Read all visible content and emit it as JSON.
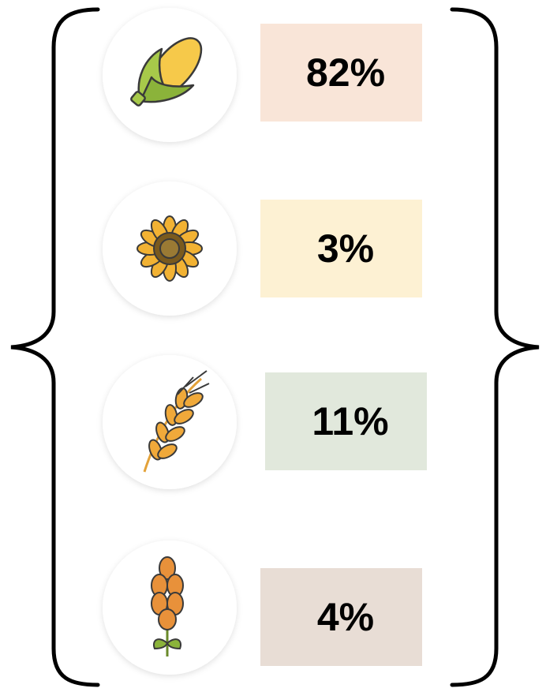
{
  "items": [
    {
      "label": "82%",
      "color": "#f9e5d8"
    },
    {
      "label": "3%",
      "color": "#fdf1d3"
    },
    {
      "label": "11%",
      "color": "#e1e8dc"
    },
    {
      "label": "4%",
      "color": "#e8ddd5"
    }
  ]
}
